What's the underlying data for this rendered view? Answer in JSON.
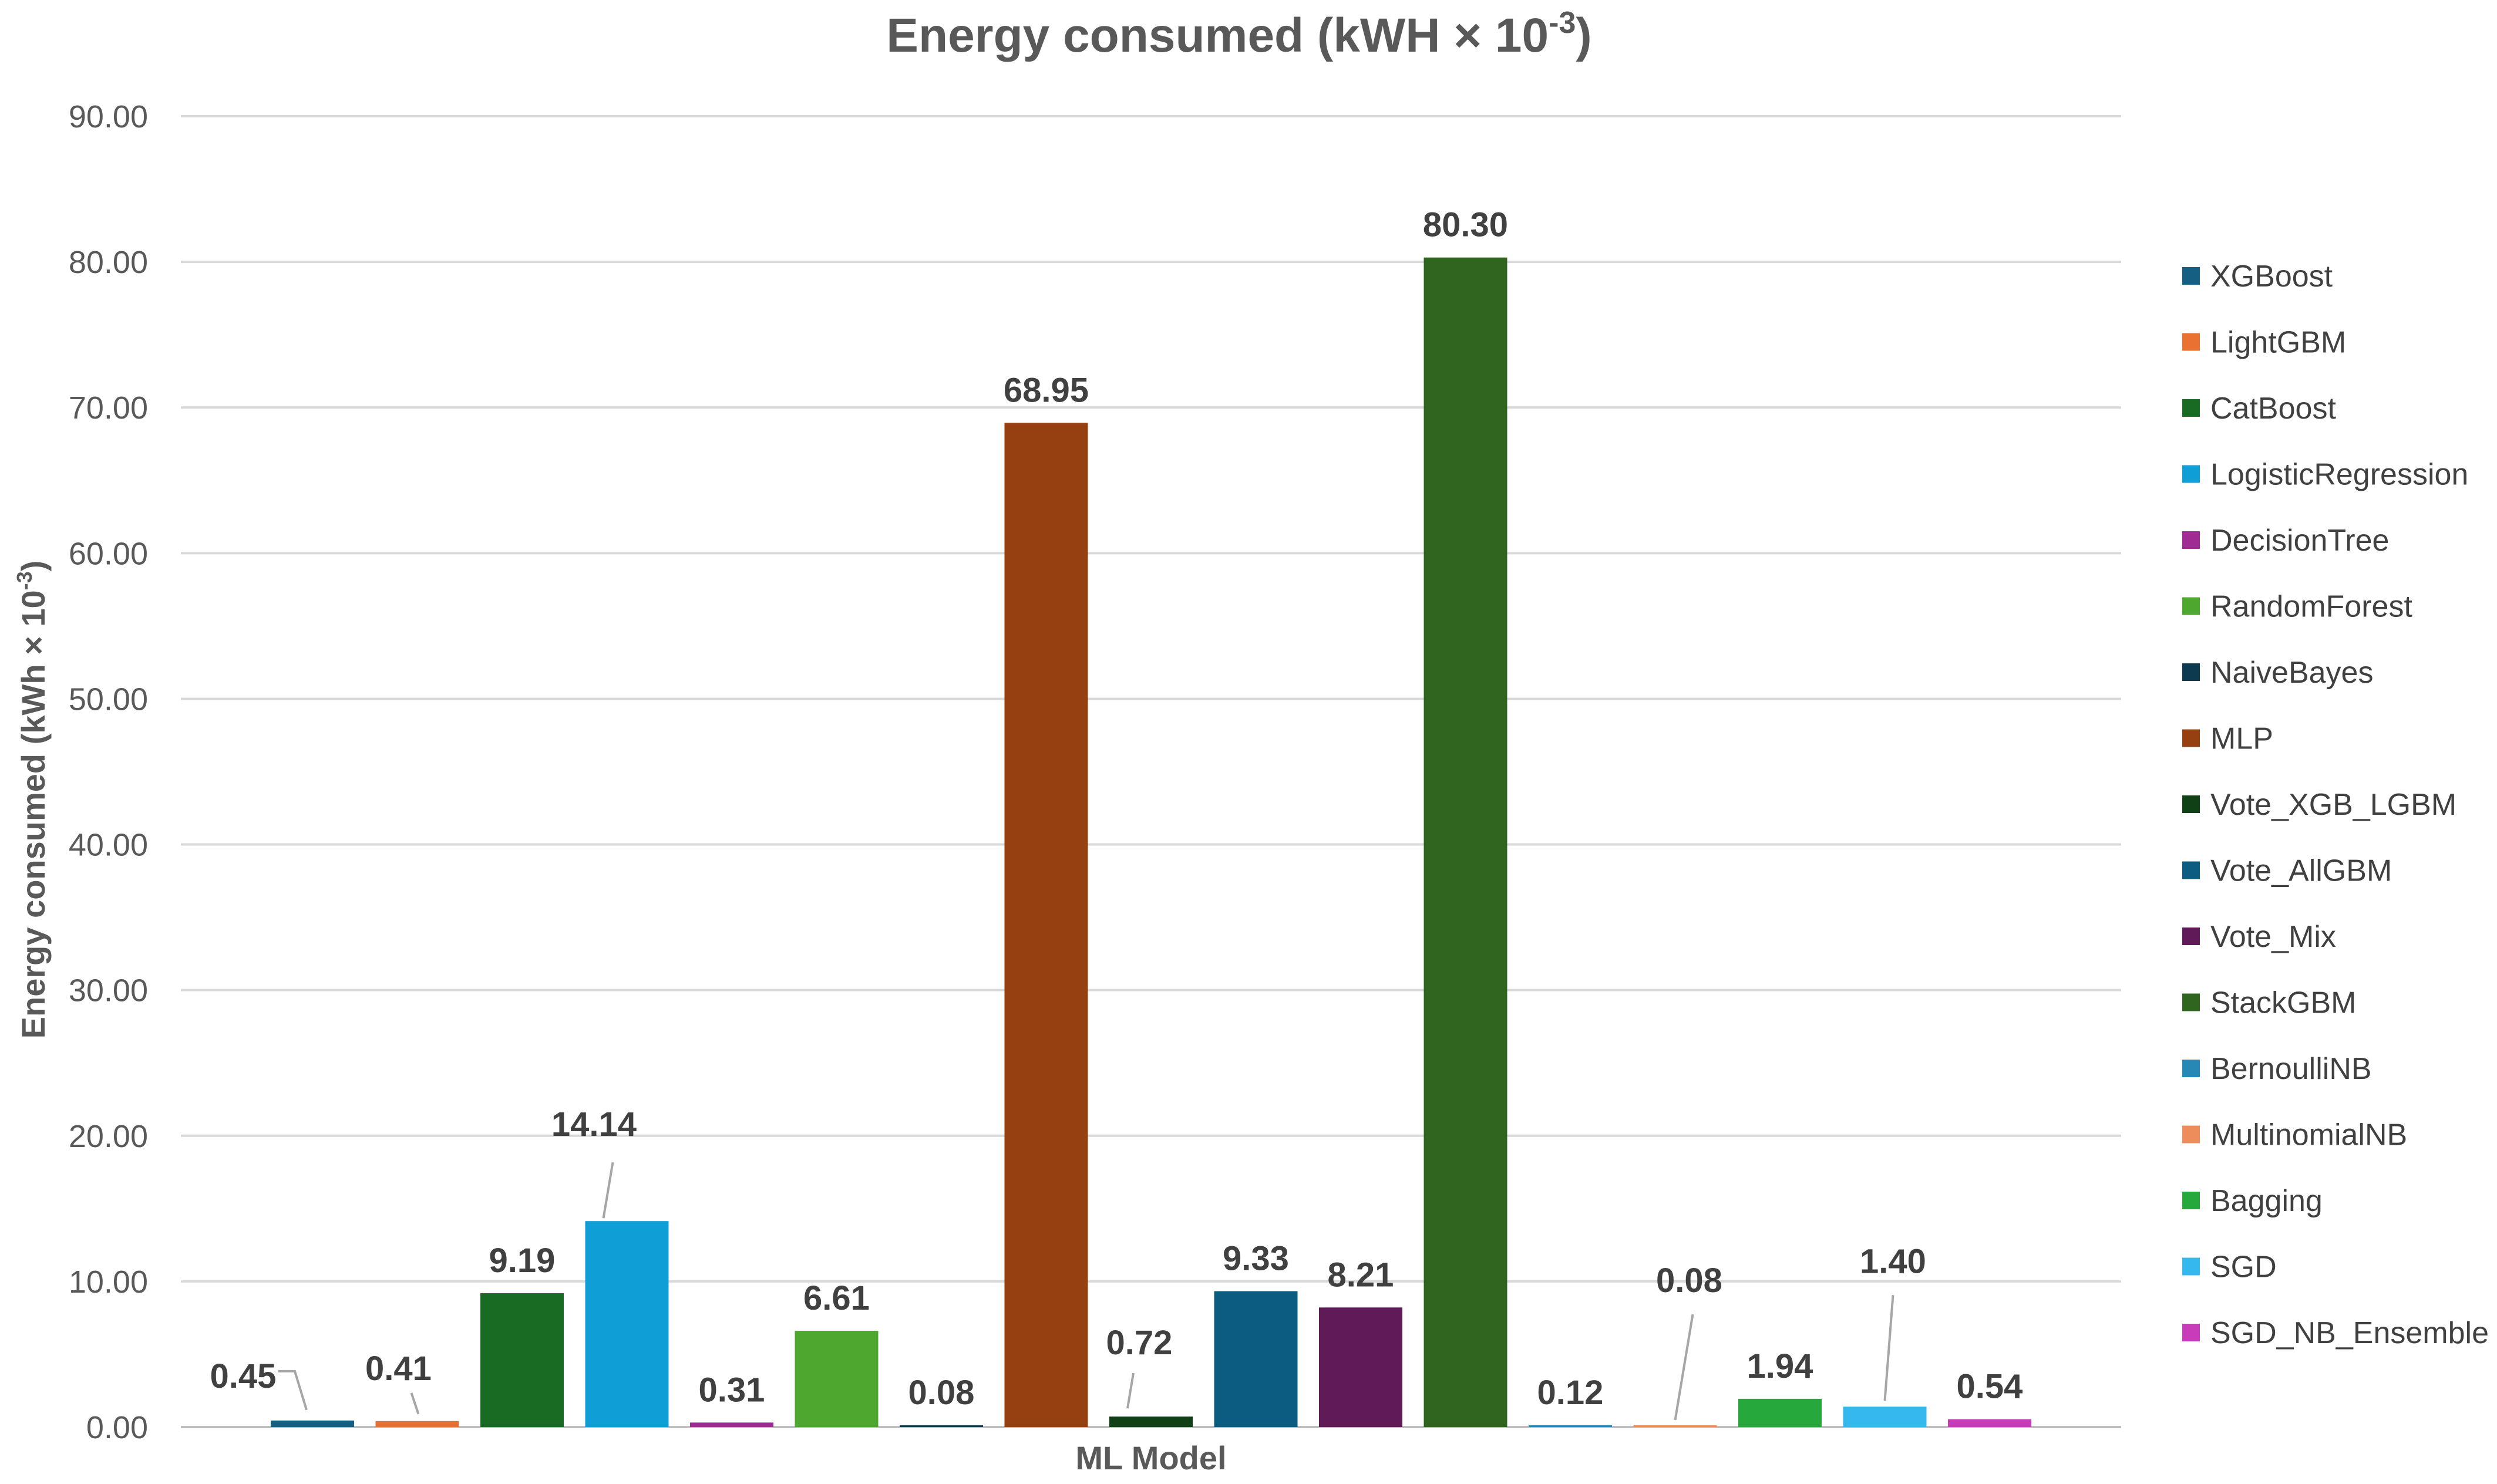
{
  "chart_data": {
    "type": "bar",
    "title": "Energy consumed (kWH × 10",
    "title_sup": "-3",
    "title_close": ")",
    "ylabel": "Energy consumed (kWh × 10",
    "ylabel_sup": "-3",
    "ylabel_close": ")",
    "xlabel": "ML Model",
    "ylim": [
      0,
      90
    ],
    "yticks": [
      "0.00",
      "10.00",
      "20.00",
      "30.00",
      "40.00",
      "50.00",
      "60.00",
      "70.00",
      "80.00",
      "90.00"
    ],
    "grid": true,
    "legend_position": "right",
    "series": [
      {
        "name": "XGBoost",
        "value": 0.45,
        "label": "0.45",
        "color": "#156082"
      },
      {
        "name": "LightGBM",
        "value": 0.41,
        "label": "0.41",
        "color": "#E97132"
      },
      {
        "name": "CatBoost",
        "value": 9.19,
        "label": "9.19",
        "color": "#196B24"
      },
      {
        "name": "LogisticRegression",
        "value": 14.14,
        "label": "14.14",
        "color": "#0F9ED5"
      },
      {
        "name": "DecisionTree",
        "value": 0.31,
        "label": "0.31",
        "color": "#A02B93"
      },
      {
        "name": "RandomForest",
        "value": 6.61,
        "label": "6.61",
        "color": "#4EA72E"
      },
      {
        "name": "NaiveBayes",
        "value": 0.08,
        "label": "0.08",
        "color": "#0D3A4E"
      },
      {
        "name": "MLP",
        "value": 68.95,
        "label": "68.95",
        "color": "#964012"
      },
      {
        "name": "Vote_XGB_LGBM",
        "value": 0.72,
        "label": "0.72",
        "color": "#0F4016"
      },
      {
        "name": "Vote_AllGBM",
        "value": 9.33,
        "label": "9.33",
        "color": "#0B5C80"
      },
      {
        "name": "Vote_Mix",
        "value": 8.21,
        "label": "8.21",
        "color": "#601A58"
      },
      {
        "name": "StackGBM",
        "value": 80.3,
        "label": "80.30",
        "color": "#2F651F"
      },
      {
        "name": "BernoulliNB",
        "value": 0.12,
        "label": "0.12",
        "color": "#2787B5"
      },
      {
        "name": "MultinomialNB",
        "value": 0.08,
        "label": "0.08",
        "color": "#ED8D5B"
      },
      {
        "name": "Bagging",
        "value": 1.94,
        "label": "1.94",
        "color": "#27A83C"
      },
      {
        "name": "SGD",
        "value": 1.4,
        "label": "1.40",
        "color": "#34B8EE"
      },
      {
        "name": "SGD_NB_Ensemble",
        "value": 0.54,
        "label": "0.54",
        "color": "#C83BB9"
      }
    ]
  }
}
